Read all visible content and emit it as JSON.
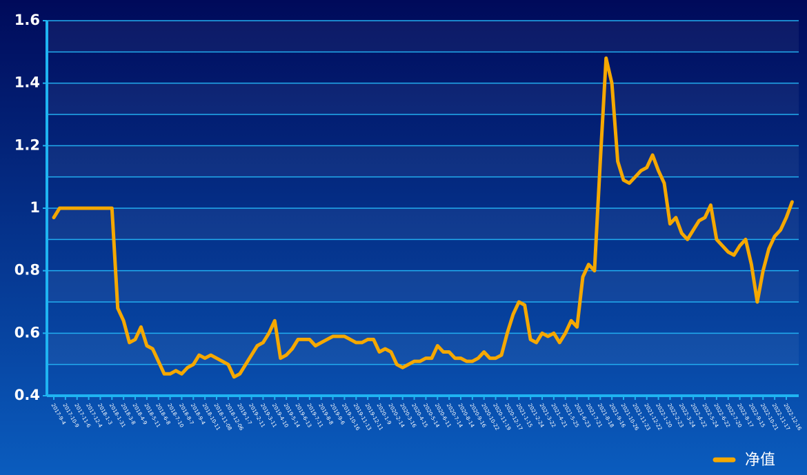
{
  "chart_data": {
    "type": "line",
    "categories": [
      "2017-9-4",
      null,
      "2017-10-9",
      null,
      "2017-11-6",
      null,
      "2017-12-4",
      null,
      "2018-1-3",
      null,
      "2018-1-31",
      null,
      "2018-3-8",
      null,
      "2018-4-9",
      null,
      "2018-5-11",
      null,
      "2018-6-8",
      null,
      "2018-7-10",
      null,
      "2018-8-7",
      null,
      "2018-9-4",
      null,
      "2018-10-11",
      null,
      "2018-11-08",
      null,
      "2018-12-06",
      null,
      "2019-1-7",
      null,
      "2019-2-11",
      null,
      "2019-3-11",
      null,
      "2019-4-10",
      null,
      "2019-5-14",
      null,
      "2019-6-13",
      null,
      "2019-7-11",
      null,
      "2019-8-8",
      null,
      "2019-9-6",
      null,
      "2019-10-16",
      null,
      "2019-11-13",
      null,
      "2019-12-11",
      null,
      "2020-1-9",
      null,
      "2020-2-14",
      null,
      "2020-3-16",
      null,
      "2020-4-15",
      null,
      "2020-5-14",
      null,
      "2020-6-11",
      null,
      "2020-7-14",
      null,
      "2020-8-14",
      null,
      "2020-9-16",
      null,
      "2020-10-22",
      null,
      "2020-11-19",
      null,
      "2020-12-17",
      null,
      "2021-1-15",
      null,
      "2021-2-24",
      null,
      "2021-3-22",
      null,
      "2021-4-21",
      null,
      "2021-5-25",
      null,
      "2021-6-23",
      null,
      "2021-7-21",
      null,
      "2021-8-18",
      null,
      "2021-9-16",
      null,
      "2021-10-26",
      null,
      "2021-11-23",
      null,
      "2021-12-22",
      null,
      "2022-1-20",
      null,
      "2022-2-23",
      null,
      "2022-3-24",
      null,
      "2022-4-22",
      null,
      "2022-5-24",
      null,
      "2022-6-22",
      null,
      "2022-7-20",
      null,
      "2022-8-17",
      null,
      "2022-9-15",
      null,
      "2022-10-21",
      null,
      "2022-11-17",
      null,
      "2022-12-16",
      null
    ],
    "series": [
      {
        "name": "净值",
        "color": "#f5a800",
        "values": [
          0.97,
          1,
          1,
          1,
          1,
          1,
          1,
          1,
          1,
          1,
          1,
          0.68,
          0.64,
          0.57,
          0.58,
          0.62,
          0.56,
          0.55,
          0.51,
          0.47,
          0.47,
          0.48,
          0.47,
          0.49,
          0.5,
          0.53,
          0.52,
          0.53,
          0.52,
          0.51,
          0.5,
          0.46,
          0.47,
          0.5,
          0.53,
          0.56,
          0.57,
          0.6,
          0.64,
          0.52,
          0.53,
          0.55,
          0.58,
          0.58,
          0.58,
          0.56,
          0.57,
          0.58,
          0.59,
          0.59,
          0.59,
          0.58,
          0.57,
          0.57,
          0.58,
          0.58,
          0.54,
          0.55,
          0.54,
          0.5,
          0.49,
          0.5,
          0.51,
          0.51,
          0.52,
          0.52,
          0.56,
          0.54,
          0.54,
          0.52,
          0.52,
          0.51,
          0.51,
          0.52,
          0.54,
          0.52,
          0.52,
          0.53,
          0.6,
          0.66,
          0.7,
          0.69,
          0.58,
          0.57,
          0.6,
          0.59,
          0.6,
          0.57,
          0.6,
          0.64,
          0.62,
          0.78,
          0.82,
          0.8,
          1.15,
          1.48,
          1.4,
          1.15,
          1.09,
          1.08,
          1.1,
          1.12,
          1.13,
          1.17,
          1.12,
          1.08,
          0.95,
          0.97,
          0.92,
          0.9,
          0.93,
          0.96,
          0.97,
          1.01,
          0.9,
          0.88,
          0.86,
          0.85,
          0.88,
          0.9,
          0.82,
          0.7,
          0.8,
          0.87,
          0.91,
          0.93,
          0.97,
          1.02
        ]
      }
    ],
    "ylim": [
      0.4,
      1.6
    ],
    "yticks": [
      0.4,
      0.6,
      0.8,
      1,
      1.2,
      1.4,
      1.6
    ],
    "grid_yticks": [
      0.4,
      0.5,
      0.6,
      0.7,
      0.8,
      0.9,
      1,
      1.1,
      1.2,
      1.3,
      1.4,
      1.5,
      1.6
    ],
    "grid": true
  }
}
